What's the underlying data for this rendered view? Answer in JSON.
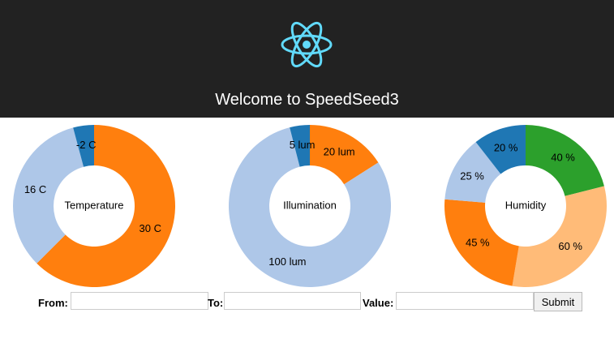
{
  "header": {
    "title": "Welcome to SpeedSeed3"
  },
  "chart_data": [
    {
      "type": "pie",
      "title": "Temperature",
      "values": [
        30,
        16,
        -2
      ],
      "value_labels": [
        "30 C",
        "16 C",
        "-2 C"
      ],
      "colors": [
        "#ff7f0e",
        "#aec7e8",
        "#1f77b4"
      ]
    },
    {
      "type": "pie",
      "title": "Illumination",
      "values": [
        20,
        100,
        5
      ],
      "value_labels": [
        "20 lum",
        "100 lum",
        "5 lum"
      ],
      "colors": [
        "#ff7f0e",
        "#aec7e8",
        "#1f77b4"
      ]
    },
    {
      "type": "pie",
      "title": "Humidity",
      "values": [
        40,
        60,
        45,
        25,
        20
      ],
      "value_labels": [
        "40 %",
        "60 %",
        "45 %",
        "25 %",
        "20 %"
      ],
      "colors": [
        "#2ca02c",
        "#ffbb78",
        "#ff7f0e",
        "#aec7e8",
        "#1f77b4"
      ]
    }
  ],
  "form": {
    "from_label": "From:",
    "to_label": "To:",
    "value_label": "Value:",
    "submit": "Submit"
  }
}
